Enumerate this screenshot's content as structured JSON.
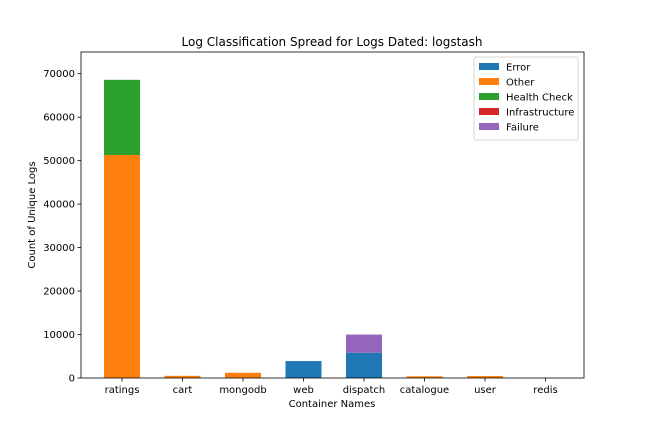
{
  "chart_data": {
    "type": "bar",
    "stacked": true,
    "title": "Log Classification Spread for Logs Dated: logstash",
    "xlabel": "Container Names",
    "ylabel": "Count of Unique Logs",
    "ylim": [
      0,
      75000
    ],
    "yticks": [
      0,
      10000,
      20000,
      30000,
      40000,
      50000,
      60000,
      70000
    ],
    "categories": [
      "ratings",
      "cart",
      "mongodb",
      "web",
      "dispatch",
      "catalogue",
      "user",
      "redis"
    ],
    "series": [
      {
        "name": "Error",
        "color": "#1f77b4",
        "values": [
          0,
          0,
          0,
          3900,
          5800,
          0,
          0,
          0
        ]
      },
      {
        "name": "Other",
        "color": "#ff7f0e",
        "values": [
          51300,
          500,
          1200,
          0,
          0,
          400,
          450,
          0
        ]
      },
      {
        "name": "Health Check",
        "color": "#2ca02c",
        "values": [
          17300,
          0,
          0,
          0,
          0,
          0,
          0,
          0
        ]
      },
      {
        "name": "Infrastructure",
        "color": "#d62728",
        "values": [
          0,
          0,
          0,
          0,
          0,
          0,
          0,
          0
        ]
      },
      {
        "name": "Failure",
        "color": "#9467bd",
        "values": [
          0,
          0,
          0,
          0,
          4200,
          0,
          0,
          0
        ]
      }
    ],
    "grid": false,
    "legend_position": "top-right"
  }
}
